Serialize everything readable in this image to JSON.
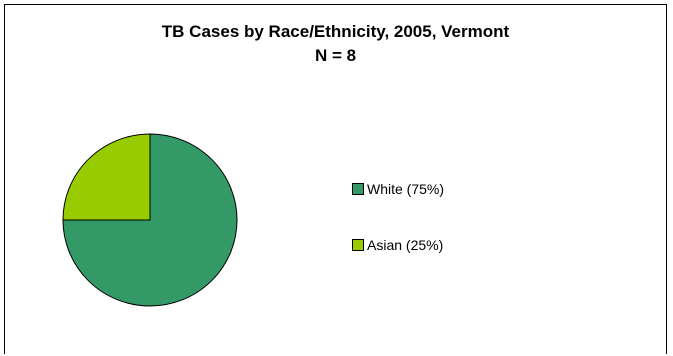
{
  "chart_data": {
    "type": "pie",
    "title": "TB Cases by Race/Ethnicity, 2005, Vermont",
    "subtitle": "N = 8",
    "slices": [
      {
        "label": "White (75%)",
        "value": 75,
        "color": "#339966"
      },
      {
        "label": "Asian (25%)",
        "value": 25,
        "color": "#99CC00"
      }
    ],
    "legend_position": "right"
  }
}
